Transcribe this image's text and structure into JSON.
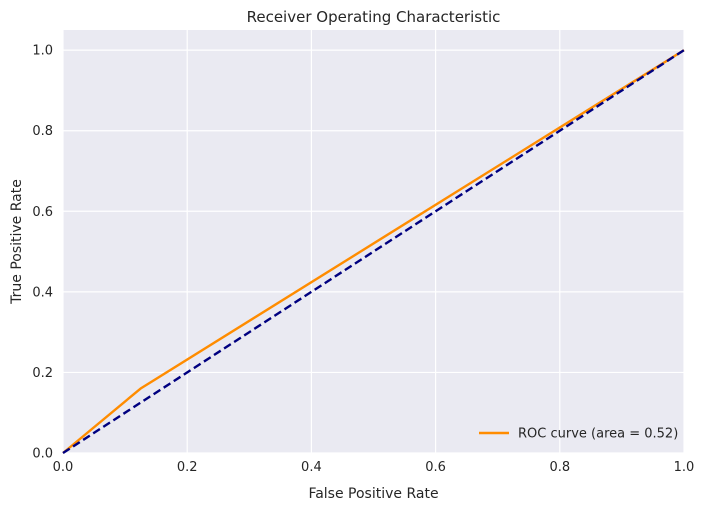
{
  "chart_data": {
    "type": "line",
    "title": "Receiver Operating Characteristic",
    "xlabel": "False Positive Rate",
    "ylabel": "True Positive Rate",
    "xlim": [
      0.0,
      1.0
    ],
    "ylim": [
      0.0,
      1.05
    ],
    "xticks": [
      "0.0",
      "0.2",
      "0.4",
      "0.6",
      "0.8",
      "1.0"
    ],
    "yticks": [
      "0.0",
      "0.2",
      "0.4",
      "0.6",
      "0.8",
      "1.0"
    ],
    "grid": true,
    "legend_position": "lower-right",
    "background_color": "#eaeaf2",
    "series": [
      {
        "name": "ROC curve (area = 0.52)",
        "color": "#ff8c00",
        "style": "solid",
        "x": [
          0.0,
          0.125,
          1.0
        ],
        "y": [
          0.0,
          0.16,
          1.0
        ]
      },
      {
        "color": "#000080",
        "style": "dashed",
        "x": [
          0.0,
          1.0
        ],
        "y": [
          0.0,
          1.0
        ]
      }
    ]
  }
}
